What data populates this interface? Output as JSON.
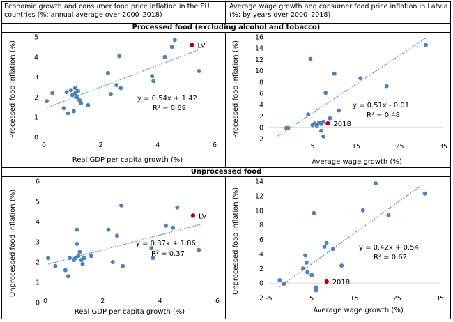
{
  "header": {
    "left": "Economic growth and consumer food price inflation in the EU countries (%; annual average over 2000–2018)",
    "right": "Average wage growth and consumer food price inflation in Latvia (%; by years over 2000–2018)"
  },
  "sections": {
    "processed": "Processed food (excluding alcohol and tobacco)",
    "unprocessed": "Unprocessed food"
  },
  "colors": {
    "point": "#4f81bd",
    "highlight": "#c00000",
    "trend": "#4f81bd"
  },
  "chart_data": [
    {
      "type": "scatter",
      "id": "processed-eu",
      "xlabel": "Real GDP per capita growth (%)",
      "ylabel": "Processed food inflation (%)",
      "xlim": [
        0,
        6
      ],
      "ylim": [
        0,
        5
      ],
      "xticks": [
        0,
        2,
        4,
        6
      ],
      "yticks": [
        0,
        1,
        2,
        3,
        4,
        5
      ],
      "points": [
        [
          0.1,
          1.8
        ],
        [
          0.3,
          2.2
        ],
        [
          0.7,
          1.45
        ],
        [
          0.8,
          2.25
        ],
        [
          0.85,
          1.2
        ],
        [
          0.95,
          2.35
        ],
        [
          1.0,
          2.1
        ],
        [
          1.05,
          1.3
        ],
        [
          1.1,
          2.45
        ],
        [
          1.1,
          2.2
        ],
        [
          1.15,
          2.0
        ],
        [
          1.2,
          2.3
        ],
        [
          1.25,
          1.85
        ],
        [
          1.3,
          1.7
        ],
        [
          1.55,
          1.6
        ],
        [
          2.25,
          3.2
        ],
        [
          2.35,
          2.15
        ],
        [
          2.55,
          2.6
        ],
        [
          2.65,
          4.05
        ],
        [
          2.7,
          2.45
        ],
        [
          3.8,
          3.05
        ],
        [
          3.85,
          2.8
        ],
        [
          4.25,
          4.0
        ],
        [
          4.5,
          4.5
        ],
        [
          4.6,
          4.85
        ],
        [
          5.45,
          3.3
        ]
      ],
      "highlight": {
        "x": 5.2,
        "y": 4.6,
        "label": "LV"
      },
      "trend": {
        "slope": 0.54,
        "intercept": 1.42,
        "x_range": [
          0.1,
          5.45
        ]
      },
      "equation": "y = 0.54x + 1.42",
      "r2": "R² = 0.69"
    },
    {
      "type": "scatter",
      "id": "processed-lv",
      "xlabel": "Average wage growth (%)",
      "ylabel": "Processed food inflation (%)",
      "xlim": [
        -5,
        35
      ],
      "ylim": [
        -2,
        16
      ],
      "xticks": [
        5,
        15,
        25,
        35
      ],
      "yticks": [
        -2,
        0,
        2,
        4,
        6,
        8,
        10,
        12,
        14,
        16
      ],
      "xtick_labels": [
        "5",
        "15",
        "25",
        "35"
      ],
      "points": [
        [
          -1.0,
          -0.1
        ],
        [
          -0.6,
          -0.1
        ],
        [
          4.0,
          2.3
        ],
        [
          4.5,
          12.1
        ],
        [
          5.0,
          0.4
        ],
        [
          5.5,
          0.7
        ],
        [
          6.0,
          0.3
        ],
        [
          6.5,
          0.8
        ],
        [
          7.0,
          0.6
        ],
        [
          7.5,
          1.0
        ],
        [
          7.0,
          -0.6
        ],
        [
          7.5,
          -1.6
        ],
        [
          8.0,
          6.1
        ],
        [
          9.0,
          1.6
        ],
        [
          10.0,
          9.5
        ],
        [
          11.0,
          3.0
        ],
        [
          16.0,
          8.7
        ],
        [
          22.0,
          7.3
        ],
        [
          31.0,
          14.6
        ]
      ],
      "highlight": {
        "x": 8.5,
        "y": 0.7,
        "label": "2018"
      },
      "trend": {
        "slope": 0.51,
        "intercept": -0.01,
        "x_range": [
          -3,
          31
        ]
      },
      "equation": "y = 0.51x - 0.01",
      "r2": "R² = 0.48"
    },
    {
      "type": "scatter",
      "id": "unprocessed-eu",
      "xlabel": "Real GDP per capita growth (%)",
      "ylabel": "Unprocessed food inflation (%)",
      "xlim": [
        0,
        6
      ],
      "ylim": [
        0,
        6
      ],
      "xticks": [
        0,
        2,
        4,
        6
      ],
      "yticks": [
        0,
        1,
        2,
        3,
        4,
        5,
        6
      ],
      "points": [
        [
          0.1,
          2.2
        ],
        [
          0.35,
          1.8
        ],
        [
          0.7,
          1.6
        ],
        [
          0.8,
          1.3
        ],
        [
          0.85,
          2.2
        ],
        [
          1.0,
          2.1
        ],
        [
          1.05,
          2.2
        ],
        [
          1.1,
          3.6
        ],
        [
          1.1,
          2.9
        ],
        [
          1.15,
          2.3
        ],
        [
          1.2,
          2.5
        ],
        [
          1.25,
          2.1
        ],
        [
          1.3,
          1.9
        ],
        [
          1.35,
          2.2
        ],
        [
          1.6,
          2.3
        ],
        [
          2.2,
          3.6
        ],
        [
          2.35,
          2.0
        ],
        [
          2.5,
          3.3
        ],
        [
          2.65,
          4.8
        ],
        [
          2.7,
          1.8
        ],
        [
          3.7,
          2.7
        ],
        [
          3.75,
          2.2
        ],
        [
          4.2,
          3.8
        ],
        [
          4.45,
          3.7
        ],
        [
          4.6,
          4.7
        ],
        [
          5.35,
          2.6
        ]
      ],
      "highlight": {
        "x": 5.15,
        "y": 4.3,
        "label": "LV"
      },
      "trend": {
        "slope": 0.37,
        "intercept": 1.86,
        "x_range": [
          0.1,
          5.4
        ]
      },
      "equation": "y = 0.37x + 1.86",
      "r2": "R² = 0.37"
    },
    {
      "type": "scatter",
      "id": "unprocessed-lv",
      "xlabel": "Average wage growth (%)",
      "ylabel": "Unprocessed food inflation (%)",
      "xlim": [
        -5,
        35
      ],
      "ylim": [
        -2,
        14
      ],
      "xticks": [
        -5,
        5,
        15,
        25,
        35
      ],
      "yticks": [
        -2,
        0,
        2,
        4,
        6,
        8,
        10,
        12,
        14
      ],
      "xtick_labels": [
        "-5",
        "5",
        "15",
        "25",
        "35"
      ],
      "points": [
        [
          -2.5,
          0.4
        ],
        [
          -1.5,
          -0.1
        ],
        [
          3.0,
          2.0
        ],
        [
          3.5,
          3.8
        ],
        [
          3.8,
          2.8
        ],
        [
          4.0,
          1.5
        ],
        [
          5.0,
          1.1
        ],
        [
          5.5,
          9.6
        ],
        [
          6.0,
          -0.6
        ],
        [
          6.0,
          -1.0
        ],
        [
          8.0,
          5.0
        ],
        [
          8.5,
          5.5
        ],
        [
          10.0,
          4.7
        ],
        [
          12.0,
          2.4
        ],
        [
          17.0,
          10.0
        ],
        [
          20.0,
          13.7
        ],
        [
          23.0,
          9.3
        ],
        [
          31.5,
          12.3
        ]
      ],
      "highlight": {
        "x": 8.5,
        "y": 0.2,
        "label": "2018"
      },
      "trend": {
        "slope": 0.42,
        "intercept": 0.54,
        "x_range": [
          -2.5,
          31
        ]
      },
      "equation": "y = 0.42x + 0.54",
      "r2": "R² = 0.62"
    }
  ]
}
